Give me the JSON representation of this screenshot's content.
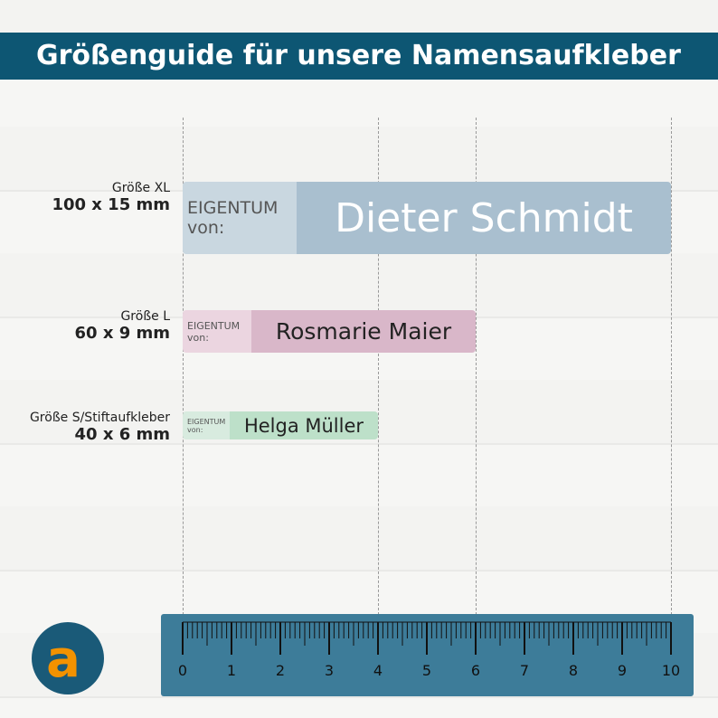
{
  "header": {
    "title": "Größenguide für unsere Namensaufkleber"
  },
  "labels": [
    {
      "size": "Größe XL",
      "dimensions": "100 x 15 mm",
      "owner": "EIGENTUM",
      "von": "von:",
      "name": "Dieter Schmidt"
    },
    {
      "size": "Größe L",
      "dimensions": "60 x 9 mm",
      "owner": "EIGENTUM",
      "von": "von:",
      "name": "Rosmarie Maier"
    },
    {
      "size": "Größe S/Stiftaufkleber",
      "dimensions": "40 x 6 mm",
      "owner": "EIGENTUM",
      "von": "von:",
      "name": "Helga Müller"
    }
  ],
  "ruler": {
    "ticks": [
      0,
      1,
      2,
      3,
      4,
      5,
      6,
      7,
      8,
      9,
      10
    ]
  }
}
